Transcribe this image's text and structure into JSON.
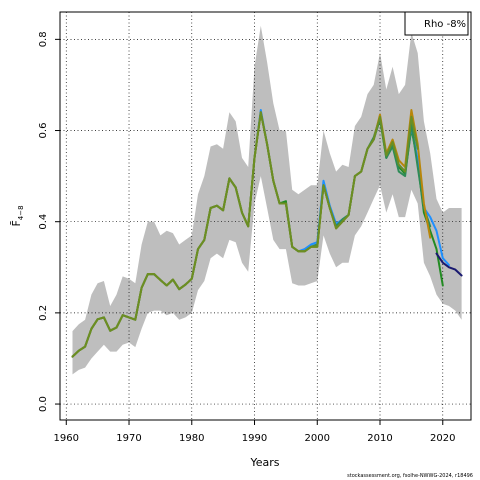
{
  "chart_data": {
    "type": "line",
    "xlabel": "Years",
    "ylabel": "F̄",
    "ylabel_subscript": "4−8",
    "xlim": [
      1959,
      2024.5
    ],
    "ylim": [
      -0.035,
      0.86
    ],
    "x_ticks": [
      1960,
      1970,
      1980,
      1990,
      2000,
      2010,
      2020
    ],
    "y_ticks": [
      0.0,
      0.2,
      0.4,
      0.6,
      0.8
    ],
    "y_tick_labels": [
      "0.0",
      "0.2",
      "0.4",
      "0.6",
      "0.8"
    ],
    "grid": true,
    "legend_text": "Rho -8%",
    "legend_position": "top-right",
    "credit": "stockassessment.org, fsolhe-NWWG-2024, r18496",
    "confidence_band": {
      "color": "#bebebe",
      "years": [
        1961,
        1962,
        1963,
        1964,
        1965,
        1966,
        1967,
        1968,
        1969,
        1970,
        1971,
        1972,
        1973,
        1974,
        1975,
        1976,
        1977,
        1978,
        1979,
        1980,
        1981,
        1982,
        1983,
        1984,
        1985,
        1986,
        1987,
        1988,
        1989,
        1990,
        1991,
        1992,
        1993,
        1994,
        1995,
        1996,
        1997,
        1998,
        1999,
        2000,
        2001,
        2002,
        2003,
        2004,
        2005,
        2006,
        2007,
        2008,
        2009,
        2010,
        2011,
        2012,
        2013,
        2014,
        2015,
        2016,
        2017,
        2018,
        2019,
        2020,
        2021,
        2022,
        2023
      ],
      "upper": [
        0.16,
        0.175,
        0.185,
        0.24,
        0.265,
        0.27,
        0.215,
        0.24,
        0.28,
        0.275,
        0.265,
        0.35,
        0.4,
        0.4,
        0.37,
        0.38,
        0.375,
        0.35,
        0.36,
        0.37,
        0.46,
        0.5,
        0.565,
        0.57,
        0.56,
        0.64,
        0.62,
        0.54,
        0.52,
        0.74,
        0.83,
        0.75,
        0.66,
        0.6,
        0.6,
        0.47,
        0.46,
        0.47,
        0.48,
        0.48,
        0.6,
        0.55,
        0.51,
        0.525,
        0.52,
        0.61,
        0.63,
        0.68,
        0.7,
        0.77,
        0.69,
        0.74,
        0.68,
        0.7,
        0.815,
        0.77,
        0.62,
        0.55,
        0.45,
        0.42,
        0.43,
        0.43,
        0.43
      ],
      "lower": [
        0.065,
        0.075,
        0.08,
        0.1,
        0.115,
        0.13,
        0.115,
        0.115,
        0.13,
        0.135,
        0.125,
        0.165,
        0.2,
        0.205,
        0.205,
        0.195,
        0.2,
        0.185,
        0.19,
        0.2,
        0.25,
        0.27,
        0.32,
        0.33,
        0.32,
        0.36,
        0.355,
        0.31,
        0.29,
        0.44,
        0.5,
        0.43,
        0.36,
        0.34,
        0.34,
        0.265,
        0.26,
        0.26,
        0.265,
        0.27,
        0.37,
        0.33,
        0.3,
        0.31,
        0.31,
        0.37,
        0.39,
        0.42,
        0.45,
        0.48,
        0.42,
        0.46,
        0.41,
        0.41,
        0.47,
        0.44,
        0.31,
        0.28,
        0.24,
        0.22,
        0.215,
        0.205,
        0.185
      ]
    },
    "series": [
      {
        "color": "#228b22",
        "x": [
          1961,
          1962,
          1963,
          1964,
          1965,
          1966,
          1967,
          1968,
          1969,
          1970,
          1971,
          1972,
          1973,
          1974,
          1975,
          1976,
          1977,
          1978,
          1979,
          1980,
          1981,
          1982,
          1983,
          1984,
          1985,
          1986,
          1987,
          1988,
          1989,
          1990,
          1991,
          1992,
          1993,
          1994,
          1995,
          1996,
          1997,
          1998,
          1999,
          2000,
          2001,
          2002,
          2003,
          2004,
          2005,
          2006,
          2007,
          2008,
          2009,
          2010,
          2011,
          2012,
          2013,
          2014,
          2015,
          2016,
          2017,
          2018,
          2019,
          2020
        ],
        "y": [
          0.104,
          0.117,
          0.126,
          0.165,
          0.186,
          0.19,
          0.161,
          0.168,
          0.195,
          0.19,
          0.185,
          0.255,
          0.285,
          0.285,
          0.272,
          0.26,
          0.273,
          0.252,
          0.262,
          0.275,
          0.34,
          0.36,
          0.43,
          0.435,
          0.425,
          0.495,
          0.475,
          0.42,
          0.39,
          0.54,
          0.64,
          0.57,
          0.49,
          0.44,
          0.445,
          0.345,
          0.335,
          0.335,
          0.345,
          0.345,
          0.48,
          0.43,
          0.39,
          0.405,
          0.415,
          0.5,
          0.51,
          0.56,
          0.58,
          0.625,
          0.54,
          0.57,
          0.52,
          0.505,
          0.605,
          0.53,
          0.42,
          0.38,
          0.34,
          0.26
        ]
      },
      {
        "color": "#1e90ff",
        "x": [
          1961,
          1962,
          1963,
          1964,
          1965,
          1966,
          1967,
          1968,
          1969,
          1970,
          1971,
          1972,
          1973,
          1974,
          1975,
          1976,
          1977,
          1978,
          1979,
          1980,
          1981,
          1982,
          1983,
          1984,
          1985,
          1986,
          1987,
          1988,
          1989,
          1990,
          1991,
          1992,
          1993,
          1994,
          1995,
          1996,
          1997,
          1998,
          1999,
          2000,
          2001,
          2002,
          2003,
          2004,
          2005,
          2006,
          2007,
          2008,
          2009,
          2010,
          2011,
          2012,
          2013,
          2014,
          2015,
          2016,
          2017,
          2018,
          2019,
          2020,
          2021
        ],
        "y": [
          0.104,
          0.117,
          0.126,
          0.165,
          0.186,
          0.19,
          0.161,
          0.168,
          0.195,
          0.19,
          0.185,
          0.255,
          0.285,
          0.285,
          0.272,
          0.26,
          0.273,
          0.252,
          0.262,
          0.275,
          0.34,
          0.36,
          0.43,
          0.435,
          0.425,
          0.495,
          0.475,
          0.42,
          0.39,
          0.54,
          0.645,
          0.57,
          0.49,
          0.44,
          0.44,
          0.345,
          0.335,
          0.34,
          0.35,
          0.355,
          0.49,
          0.435,
          0.395,
          0.405,
          0.415,
          0.5,
          0.51,
          0.56,
          0.58,
          0.63,
          0.545,
          0.575,
          0.525,
          0.51,
          0.61,
          0.535,
          0.43,
          0.41,
          0.38,
          0.32,
          0.305
        ]
      },
      {
        "color": "#191970",
        "x": [
          2019,
          2020,
          2021,
          2022,
          2023
        ],
        "y": [
          0.33,
          0.31,
          0.3,
          0.295,
          0.282
        ]
      },
      {
        "color": "#2e8b57",
        "x": [
          1961,
          1962,
          1963,
          1964,
          1965,
          1966,
          1967,
          1968,
          1969,
          1970,
          1971,
          1972,
          1973,
          1974,
          1975,
          1976,
          1977,
          1978,
          1979,
          1980,
          1981,
          1982,
          1983,
          1984,
          1985,
          1986,
          1987,
          1988,
          1989,
          1990,
          1991,
          1992,
          1993,
          1994,
          1995,
          1996,
          1997,
          1998,
          1999,
          2000,
          2001,
          2002,
          2003,
          2004,
          2005,
          2006,
          2007,
          2008,
          2009,
          2010,
          2011,
          2012,
          2013,
          2014,
          2015,
          2016,
          2017,
          2018
        ],
        "y": [
          0.104,
          0.117,
          0.126,
          0.165,
          0.186,
          0.19,
          0.161,
          0.168,
          0.195,
          0.19,
          0.185,
          0.255,
          0.285,
          0.285,
          0.272,
          0.26,
          0.273,
          0.252,
          0.262,
          0.275,
          0.34,
          0.36,
          0.43,
          0.435,
          0.425,
          0.495,
          0.475,
          0.42,
          0.39,
          0.54,
          0.64,
          0.57,
          0.49,
          0.44,
          0.44,
          0.345,
          0.335,
          0.335,
          0.345,
          0.35,
          0.48,
          0.43,
          0.39,
          0.405,
          0.415,
          0.5,
          0.51,
          0.56,
          0.585,
          0.63,
          0.54,
          0.565,
          0.51,
          0.5,
          0.615,
          0.52,
          0.43,
          0.39
        ]
      },
      {
        "color": "#b8860b",
        "x": [
          1961,
          1962,
          1963,
          1964,
          1965,
          1966,
          1967,
          1968,
          1969,
          1970,
          1971,
          1972,
          1973,
          1974,
          1975,
          1976,
          1977,
          1978,
          1979,
          1980,
          1981,
          1982,
          1983,
          1984,
          1985,
          1986,
          1987,
          1988,
          1989,
          1990,
          1991,
          1992,
          1993,
          1994,
          1995,
          1996,
          1997,
          1998,
          1999,
          2000,
          2001,
          2002,
          2003,
          2004,
          2005,
          2006,
          2007,
          2008,
          2009,
          2010,
          2011,
          2012,
          2013,
          2014,
          2015,
          2016,
          2017,
          2018
        ],
        "y": [
          0.104,
          0.117,
          0.126,
          0.165,
          0.186,
          0.19,
          0.161,
          0.168,
          0.195,
          0.19,
          0.185,
          0.255,
          0.285,
          0.285,
          0.272,
          0.26,
          0.273,
          0.252,
          0.262,
          0.275,
          0.34,
          0.36,
          0.43,
          0.435,
          0.425,
          0.495,
          0.475,
          0.42,
          0.39,
          0.54,
          0.64,
          0.57,
          0.49,
          0.44,
          0.44,
          0.345,
          0.335,
          0.335,
          0.345,
          0.345,
          0.48,
          0.43,
          0.385,
          0.4,
          0.415,
          0.5,
          0.51,
          0.56,
          0.58,
          0.635,
          0.55,
          0.58,
          0.535,
          0.52,
          0.645,
          0.57,
          0.44,
          0.365
        ]
      },
      {
        "color": "#6b8e23",
        "x": [
          1961,
          1962,
          1963,
          1964,
          1965,
          1966,
          1967,
          1968,
          1969,
          1970,
          1971,
          1972,
          1973,
          1974,
          1975,
          1976,
          1977,
          1978,
          1979,
          1980,
          1981,
          1982,
          1983,
          1984,
          1985,
          1986,
          1987,
          1988,
          1989,
          1990,
          1991,
          1992,
          1993,
          1994,
          1995,
          1996,
          1997,
          1998,
          1999,
          2000,
          2001,
          2002,
          2003,
          2004,
          2005,
          2006,
          2007,
          2008,
          2009,
          2010,
          2011,
          2012,
          2013,
          2014,
          2015,
          2016
        ],
        "y": [
          0.104,
          0.117,
          0.126,
          0.165,
          0.186,
          0.19,
          0.161,
          0.168,
          0.195,
          0.19,
          0.185,
          0.255,
          0.285,
          0.285,
          0.272,
          0.26,
          0.273,
          0.252,
          0.262,
          0.275,
          0.34,
          0.36,
          0.43,
          0.435,
          0.425,
          0.495,
          0.475,
          0.42,
          0.39,
          0.54,
          0.64,
          0.57,
          0.49,
          0.44,
          0.44,
          0.345,
          0.335,
          0.335,
          0.345,
          0.345,
          0.48,
          0.43,
          0.385,
          0.4,
          0.415,
          0.5,
          0.51,
          0.56,
          0.58,
          0.63,
          0.545,
          0.575,
          0.525,
          0.51,
          0.63,
          0.56
        ]
      }
    ]
  }
}
